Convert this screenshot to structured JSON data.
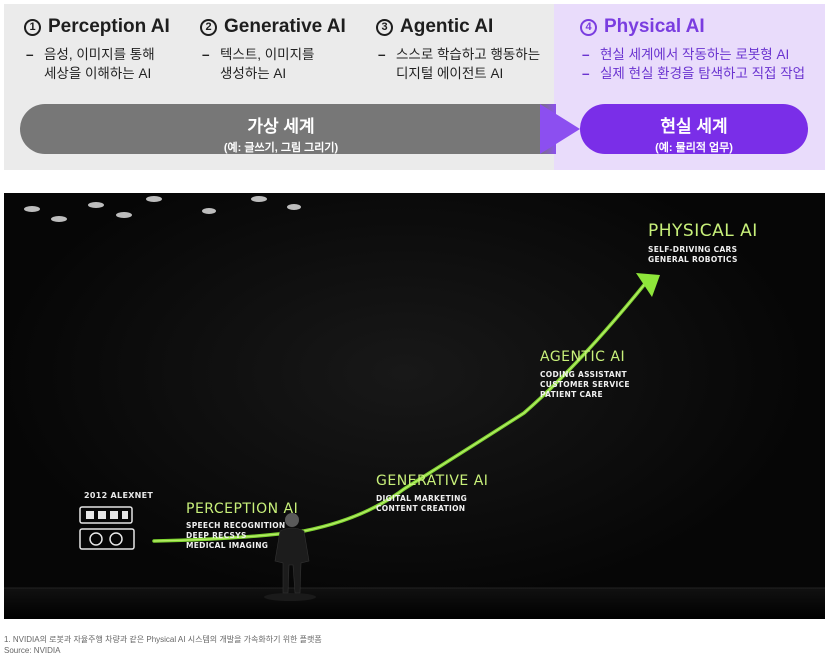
{
  "diagram": {
    "stages": [
      {
        "num": "1",
        "title": "Perception AI",
        "bullets": [
          "음성, 이미지를 통해 세상을 이해하는 AI"
        ]
      },
      {
        "num": "2",
        "title": "Generative AI",
        "bullets": [
          "텍스트, 이미지를 생성하는 AI"
        ]
      },
      {
        "num": "3",
        "title": "Agentic AI",
        "bullets": [
          "스스로 학습하고 행동하는 디지털 에이전트 AI"
        ]
      },
      {
        "num": "4",
        "title": "Physical AI",
        "bullets": [
          "현실 세계에서 작동하는 로봇형 AI",
          "실제 현실 환경을 탐색하고 직접 작업"
        ]
      }
    ],
    "virtual_bar": {
      "title": "가상 세계",
      "subtitle": "(예: 글쓰기, 그림 그리기)"
    },
    "physical_bar": {
      "title": "현실 세계",
      "subtitle": "(예: 물리적 업무)"
    },
    "colors": {
      "virtual": "#777777",
      "physical": "#7a2ee8",
      "physical_panel": "#e9dcfb",
      "virtual_panel": "#ebebeb"
    }
  },
  "photo": {
    "alexnet_label": "2012 ALEXNET",
    "stages": [
      {
        "title": "PERCEPTION AI",
        "items": [
          "SPEECH RECOGNITION",
          "DEEP RECSYS",
          "MEDICAL IMAGING"
        ]
      },
      {
        "title": "GENERATIVE AI",
        "items": [
          "DIGITAL MARKETING",
          "CONTENT CREATION"
        ]
      },
      {
        "title": "AGENTIC AI",
        "items": [
          "CODING ASSISTANT",
          "CUSTOMER SERVICE",
          "PATIENT CARE"
        ]
      },
      {
        "title": "PHYSICAL AI",
        "items": [
          "SELF-DRIVING CARS",
          "GENERAL ROBOTICS"
        ]
      }
    ],
    "colors": {
      "arrow": "#8ee63a",
      "title": "#c8f07a"
    }
  },
  "footnote": {
    "line1": "1. NVIDIA의 로봇과 자율주행 차량과 같은 Physical AI 시스템의 개발을 가속화하기 위한 플랫폼",
    "line2": "Source: NVIDIA"
  }
}
